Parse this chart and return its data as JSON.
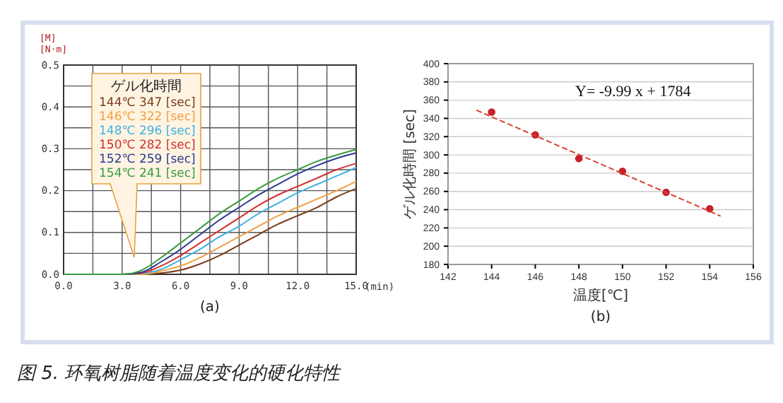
{
  "chart_data": [
    {
      "type": "line",
      "ylabel": "[M]\n[N·m]",
      "xlabel": "(min)",
      "subtitle": "(a)",
      "legend_title": "ゲル化時間",
      "grid": true,
      "annotations": [
        "图 5. 环氧树脂随着温度变化的硬化特性"
      ],
      "x": [
        0,
        3,
        4,
        5,
        6,
        7,
        8,
        9,
        10,
        11,
        12,
        13,
        14,
        15
      ],
      "xlim": [
        0,
        15
      ],
      "xticks": [
        {
          "value": 0,
          "label": "0.0"
        },
        {
          "value": 1.5,
          "label": null
        },
        {
          "value": 3,
          "label": "3.0"
        },
        {
          "value": 4.5,
          "label": null
        },
        {
          "value": 6,
          "label": "6.0"
        },
        {
          "value": 7.5,
          "label": null
        },
        {
          "value": 9,
          "label": "9.0"
        },
        {
          "value": 10.5,
          "label": null
        },
        {
          "value": 12,
          "label": "12.0"
        },
        {
          "value": 13.5,
          "label": null
        },
        {
          "value": 15,
          "label": "15.0"
        }
      ],
      "ylim": [
        0,
        0.5
      ],
      "yticks": [
        {
          "value": 0,
          "label": "0.0"
        },
        {
          "value": 0.05,
          "label": null
        },
        {
          "value": 0.1,
          "label": "0.1"
        },
        {
          "value": 0.15,
          "label": null
        },
        {
          "value": 0.2,
          "label": "0.2"
        },
        {
          "value": 0.25,
          "label": null
        },
        {
          "value": 0.3,
          "label": "0.3"
        },
        {
          "value": 0.35,
          "label": null
        },
        {
          "value": 0.4,
          "label": "0.4"
        },
        {
          "value": 0.45,
          "label": null
        },
        {
          "value": 0.5,
          "label": "0.5"
        }
      ],
      "series": [
        {
          "name": "144℃ 347 [sec]",
          "color": "#7a3b1a",
          "values": [
            0,
            0,
            0,
            0.003,
            0.01,
            0.025,
            0.045,
            0.07,
            0.095,
            0.12,
            0.14,
            0.16,
            0.185,
            0.205
          ]
        },
        {
          "name": "146℃ 322 [sec]",
          "color": "#f0a040",
          "values": [
            0,
            0,
            0,
            0.008,
            0.02,
            0.04,
            0.065,
            0.09,
            0.115,
            0.14,
            0.16,
            0.18,
            0.2,
            0.222
          ]
        },
        {
          "name": "148℃ 296 [sec]",
          "color": "#40b0e0",
          "values": [
            0,
            0,
            0.002,
            0.012,
            0.035,
            0.06,
            0.09,
            0.115,
            0.145,
            0.17,
            0.195,
            0.215,
            0.235,
            0.255
          ]
        },
        {
          "name": "150℃ 282 [sec]",
          "color": "#d03030",
          "values": [
            0,
            0,
            0.003,
            0.02,
            0.045,
            0.075,
            0.105,
            0.135,
            0.165,
            0.19,
            0.21,
            0.23,
            0.25,
            0.265
          ]
        },
        {
          "name": "152℃ 259 [sec]",
          "color": "#2a3a90",
          "values": [
            0,
            0,
            0.005,
            0.03,
            0.06,
            0.095,
            0.13,
            0.16,
            0.19,
            0.215,
            0.24,
            0.26,
            0.277,
            0.29
          ]
        },
        {
          "name": "154℃ 241 [sec]",
          "color": "#3a9a40",
          "values": [
            0,
            0,
            0.01,
            0.04,
            0.075,
            0.11,
            0.145,
            0.175,
            0.205,
            0.23,
            0.25,
            0.27,
            0.285,
            0.298
          ]
        }
      ]
    },
    {
      "type": "scatter",
      "xlabel": "温度[℃]",
      "ylabel": "ゲル化時間 [sec]",
      "subtitle": "(b)",
      "grid": "y",
      "annotations": [
        "Y= -9.99 x + 1784"
      ],
      "xlim": [
        142,
        156
      ],
      "xticks": [
        142,
        144,
        146,
        148,
        150,
        152,
        154,
        156
      ],
      "ylim": [
        180,
        400
      ],
      "yticks": [
        180,
        200,
        220,
        240,
        260,
        280,
        300,
        320,
        340,
        360,
        380,
        400
      ],
      "series": [
        {
          "marker": "circle",
          "color": "#c8202a",
          "x": [
            144,
            146,
            148,
            150,
            152,
            154
          ],
          "values": [
            347,
            322,
            296,
            282,
            259,
            241
          ]
        },
        {
          "type": "line",
          "color": "#d84030",
          "line_style": "dashed",
          "x": [
            143.3,
            154.5
          ],
          "values": [
            349,
            233
          ]
        }
      ]
    }
  ]
}
